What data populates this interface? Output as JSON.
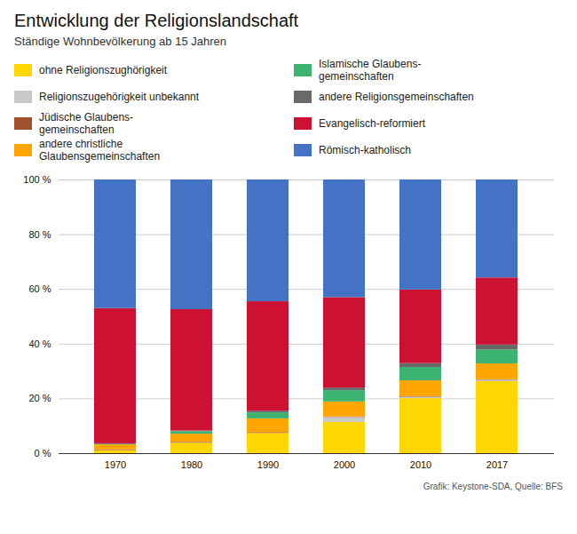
{
  "chart_data": {
    "type": "bar",
    "stacked": true,
    "title": "Entwicklung der Religionslandschaft",
    "subtitle": "Ständige Wohnbevölkerung ab 15 Jahren",
    "source": "Grafik: Keystone-SDA, Quelle: BFS",
    "categories": [
      "1970",
      "1980",
      "1990",
      "2000",
      "2010",
      "2017"
    ],
    "series": [
      {
        "name": "ohne Religionszughörigkeit",
        "color": "#FFD700",
        "values": [
          1.1,
          3.8,
          7.4,
          11.4,
          20.1,
          26.3
        ]
      },
      {
        "name": "Religionszugehörigkeit unbekannt",
        "color": "#C8C8C8",
        "values": [
          0.0,
          0.0,
          0.0,
          1.8,
          0.5,
          0.5
        ]
      },
      {
        "name": "Jüdische Glaubens-\ngemeinschaften",
        "color": "#A0522D",
        "values": [
          0.3,
          0.3,
          0.3,
          0.2,
          0.2,
          0.2
        ]
      },
      {
        "name": "andere christliche\nGlaubensgemeinschaften",
        "color": "#FFA500",
        "values": [
          1.8,
          3.0,
          5.0,
          5.5,
          5.8,
          5.8
        ]
      },
      {
        "name": "Islamische Glaubens-\ngemeinschaften",
        "color": "#3CB371",
        "values": [
          0.1,
          0.9,
          2.2,
          4.1,
          4.9,
          5.1
        ]
      },
      {
        "name": "andere Religionsgemeinschaften",
        "color": "#696969",
        "values": [
          0.3,
          0.3,
          0.6,
          1.0,
          1.4,
          1.8
        ]
      },
      {
        "name": "Evangelisch-reformiert",
        "color": "#CC1133",
        "values": [
          49.4,
          44.3,
          40.0,
          33.0,
          26.9,
          24.5
        ]
      },
      {
        "name": "Römisch-katholisch",
        "color": "#4472C4",
        "values": [
          47.0,
          47.4,
          44.5,
          43.0,
          40.2,
          35.8
        ]
      }
    ],
    "ylim": [
      0,
      100
    ],
    "yticks": [
      {
        "value": 0,
        "label": "0 %"
      },
      {
        "value": 20,
        "label": "20 %"
      },
      {
        "value": 40,
        "label": "40 %"
      },
      {
        "value": 60,
        "label": "60 %"
      },
      {
        "value": 80,
        "label": "80 %"
      },
      {
        "value": 100,
        "label": "100 %"
      }
    ],
    "grid": true
  }
}
